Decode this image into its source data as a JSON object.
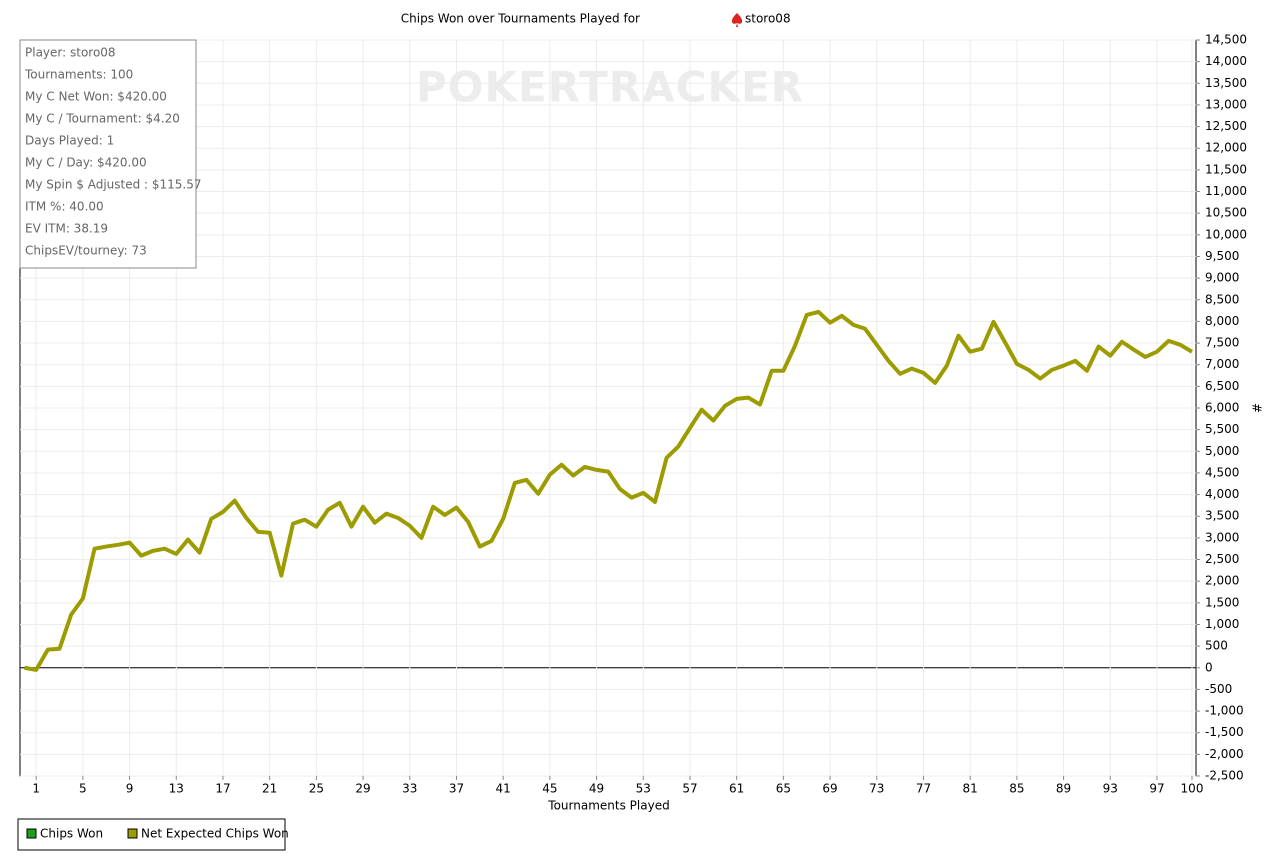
{
  "chart_data": {
    "type": "line",
    "title": "Chips Won over Tournaments Played for",
    "title_player": "storo08",
    "watermark": "POKERTRACKER",
    "stats": [
      "Player: storo08",
      "Tournaments: 100",
      "My C Net Won: $420.00",
      "My C / Tournament: $4.20",
      "Days Played: 1",
      "My C / Day: $420.00",
      "My Spin $ Adjusted : $115.57",
      "ITM %: 40.00",
      "EV ITM: 38.19",
      "ChipsEV/tourney: 73"
    ],
    "xlabel": "Tournaments Played",
    "ylabel": "#",
    "legend": [
      {
        "name": "Chips Won",
        "color": "#1e9e1e"
      },
      {
        "name": "Net Expected Chips Won",
        "color": "#9c9c00"
      }
    ],
    "x": [
      0,
      1,
      2,
      3,
      4,
      5,
      6,
      7,
      8,
      9,
      10,
      11,
      12,
      13,
      14,
      15,
      16,
      17,
      18,
      19,
      20,
      21,
      22,
      23,
      24,
      25,
      26,
      27,
      28,
      29,
      30,
      31,
      32,
      33,
      34,
      35,
      36,
      37,
      38,
      39,
      40,
      41,
      42,
      43,
      44,
      45,
      46,
      47,
      48,
      49,
      50,
      51,
      52,
      53,
      54,
      55,
      56,
      57,
      58,
      59,
      60,
      61,
      62,
      63,
      64,
      65,
      66,
      67,
      68,
      69,
      70,
      71,
      72,
      73,
      74,
      75,
      76,
      77,
      78,
      79,
      80,
      81,
      82,
      83,
      84,
      85,
      86,
      87,
      88,
      89,
      90,
      91,
      92,
      93,
      94,
      95,
      96,
      97,
      98,
      99,
      100
    ],
    "series": [
      {
        "name": "Net Expected Chips Won",
        "color": "#9c9c00",
        "values": [
          0,
          -50,
          420,
          440,
          1230,
          1600,
          2750,
          2800,
          2840,
          2890,
          2590,
          2700,
          2750,
          2630,
          2960,
          2660,
          3440,
          3600,
          3860,
          3460,
          3140,
          3120,
          2130,
          3330,
          3420,
          3260,
          3650,
          3810,
          3260,
          3720,
          3350,
          3560,
          3460,
          3280,
          3000,
          3720,
          3530,
          3700,
          3370,
          2800,
          2930,
          3440,
          4270,
          4340,
          4020,
          4460,
          4690,
          4440,
          4640,
          4570,
          4530,
          4130,
          3930,
          4040,
          3830,
          4850,
          5110,
          5540,
          5960,
          5710,
          6050,
          6210,
          6240,
          6080,
          6860,
          6860,
          7440,
          8150,
          8220,
          7970,
          8130,
          7920,
          7830,
          7460,
          7090,
          6790,
          6910,
          6810,
          6580,
          6980,
          7670,
          7300,
          7370,
          7990,
          7510,
          7020,
          6880,
          6680,
          6880,
          6980,
          7090,
          6860,
          7420,
          7210,
          7530,
          7350,
          7180,
          7300,
          7550,
          7460,
          7300
        ]
      }
    ],
    "xlim": [
      0,
      100
    ],
    "xticks": [
      1,
      5,
      9,
      13,
      17,
      21,
      25,
      29,
      33,
      37,
      41,
      45,
      49,
      53,
      57,
      61,
      65,
      69,
      73,
      77,
      81,
      85,
      89,
      93,
      97,
      100
    ],
    "ylim": [
      -2500,
      14500
    ],
    "yticks": [
      {
        "value": -2500,
        "label": "-2,500"
      },
      {
        "value": -2000,
        "label": "-2,000"
      },
      {
        "value": -1500,
        "label": "-1,500"
      },
      {
        "value": -1000,
        "label": "-1,000"
      },
      -500,
      0,
      500,
      {
        "value": 1000,
        "label": "1,000"
      },
      {
        "value": 1500,
        "label": "1,500"
      },
      {
        "value": 2000,
        "label": "2,000"
      },
      {
        "value": 2500,
        "label": "2,500"
      },
      {
        "value": 3000,
        "label": "3,000"
      },
      {
        "value": 3500,
        "label": "3,500"
      },
      {
        "value": 4000,
        "label": "4,000"
      },
      {
        "value": 4500,
        "label": "4,500"
      },
      {
        "value": 5000,
        "label": "5,000"
      },
      {
        "value": 5500,
        "label": "5,500"
      },
      {
        "value": 6000,
        "label": "6,000"
      },
      {
        "value": 6500,
        "label": "6,500"
      },
      {
        "value": 7000,
        "label": "7,000"
      },
      {
        "value": 7500,
        "label": "7,500"
      },
      {
        "value": 8000,
        "label": "8,000"
      },
      {
        "value": 8500,
        "label": "8,500"
      },
      {
        "value": 9000,
        "label": "9,000"
      },
      {
        "value": 9500,
        "label": "9,500"
      },
      {
        "value": 10000,
        "label": "10,000"
      },
      {
        "value": 10500,
        "label": "10,500"
      },
      {
        "value": 11000,
        "label": "11,000"
      },
      {
        "value": 11500,
        "label": "11,500"
      },
      {
        "value": 12000,
        "label": "12,000"
      },
      {
        "value": 12500,
        "label": "12,500"
      },
      {
        "value": 13000,
        "label": "13,000"
      },
      {
        "value": 13500,
        "label": "13,500"
      },
      {
        "value": 14000,
        "label": "14,000"
      },
      {
        "value": 14500,
        "label": "14,500"
      }
    ],
    "grid": true
  }
}
